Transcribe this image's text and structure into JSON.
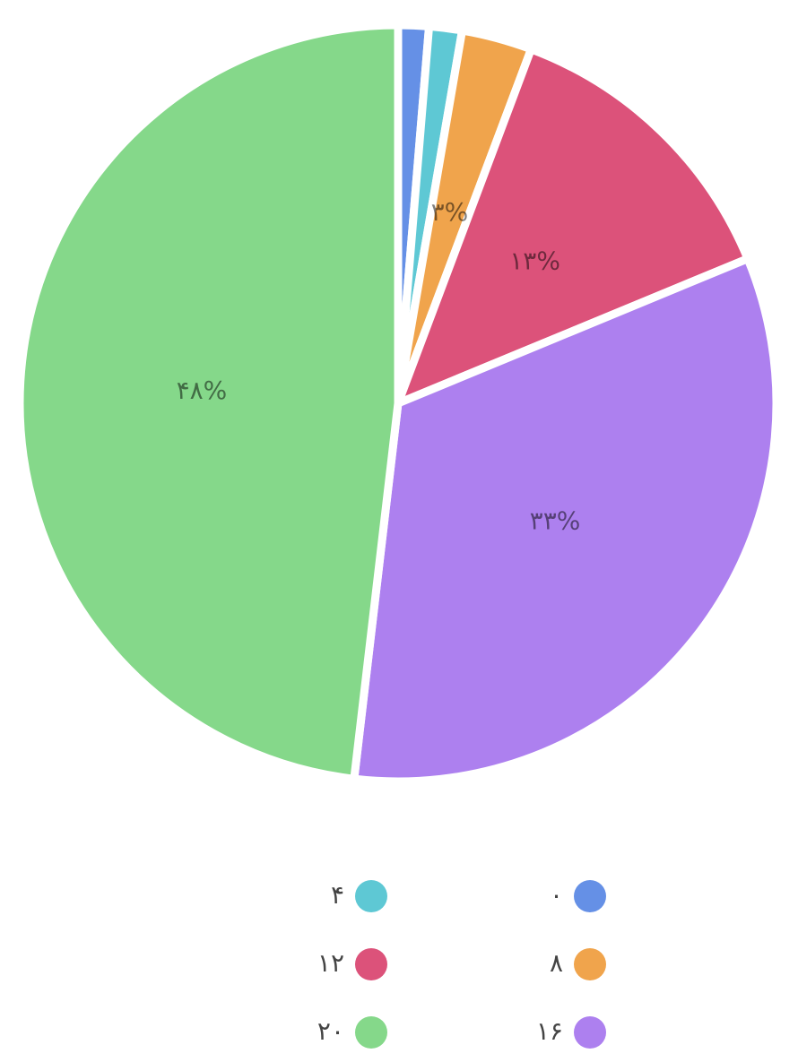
{
  "chart_data": {
    "type": "pie",
    "categories": [
      "۰",
      "۴",
      "۸",
      "۱۲",
      "۱۶",
      "۲۰"
    ],
    "values": [
      1.3,
      1.4,
      3,
      13,
      33,
      48
    ],
    "value_labels": [
      null,
      null,
      "۳%",
      "۱۳%",
      "۳۳%",
      "۴۸%"
    ],
    "colors": [
      "#6590e6",
      "#5ec8d4",
      "#f0a44c",
      "#dc527a",
      "#ad80ef",
      "#85d88a"
    ]
  }
}
